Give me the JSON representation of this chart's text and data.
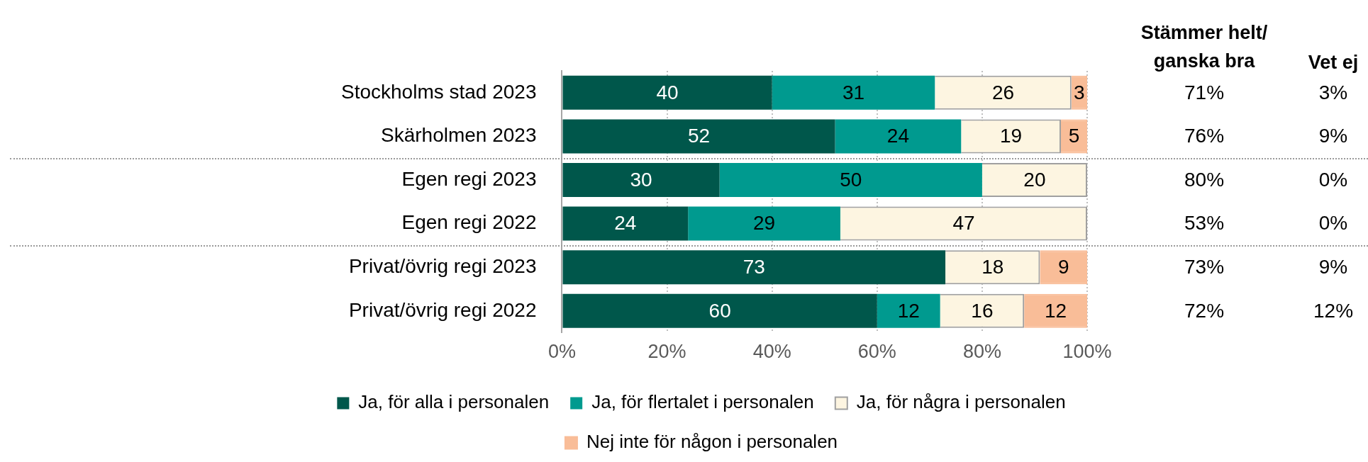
{
  "chart_data": {
    "type": "bar",
    "orientation": "horizontal",
    "stacked": true,
    "categories": [
      "Stockholms stad 2023",
      "Skärholmen 2023",
      "Egen regi 2023",
      "Egen regi 2022",
      "Privat/övrig regi 2023",
      "Privat/övrig regi 2022"
    ],
    "series": [
      {
        "name": "Ja, för alla i personalen",
        "color": "#00574b",
        "values": [
          40,
          52,
          30,
          24,
          73,
          60
        ]
      },
      {
        "name": "Ja, för flertalet i personalen",
        "color": "#009a8f",
        "values": [
          31,
          24,
          50,
          29,
          null,
          12
        ]
      },
      {
        "name": "Ja, för några i personalen",
        "color": "#fdf5e1",
        "values": [
          26,
          19,
          20,
          47,
          18,
          16
        ]
      },
      {
        "name": "Nej inte för någon i personalen",
        "color": "#f9bd98",
        "values": [
          3,
          5,
          null,
          null,
          9,
          12
        ]
      }
    ],
    "xlim": [
      0,
      100
    ],
    "xticks": [
      {
        "value": 0,
        "label": "0%"
      },
      {
        "value": 20,
        "label": "20%"
      },
      {
        "value": 40,
        "label": "40%"
      },
      {
        "value": 60,
        "label": "60%"
      },
      {
        "value": 80,
        "label": "80%"
      },
      {
        "value": 100,
        "label": "100%"
      }
    ],
    "grid": "x",
    "legend": "bottom",
    "data_labels": true,
    "annotations": [
      "Stämmer helt/\nganska bra",
      "Vet ej",
      "71%",
      "3%",
      "76%",
      "9%",
      "80%",
      "0%",
      "53%",
      "0%",
      "73%",
      "9%",
      "72%",
      "12%"
    ]
  }
}
